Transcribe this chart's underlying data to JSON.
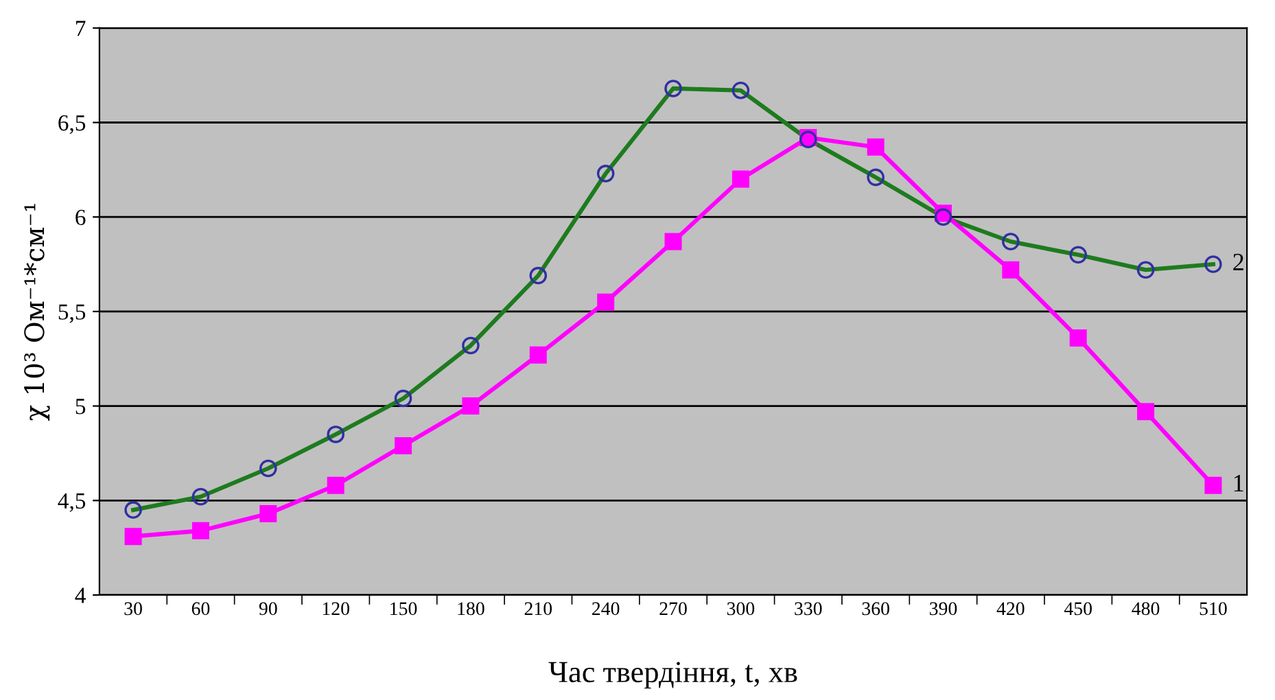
{
  "chart_data": {
    "type": "line",
    "xlabel": "Час твердіння, t, хв",
    "ylabel": "χ 10³ Ом⁻¹*см⁻¹",
    "categories": [
      "30",
      "60",
      "90",
      "120",
      "150",
      "180",
      "210",
      "240",
      "270",
      "300",
      "330",
      "360",
      "390",
      "420",
      "450",
      "480",
      "510"
    ],
    "series": [
      {
        "name": "2",
        "color": "#1e7b1e",
        "marker": "circle",
        "values": [
          4.45,
          4.52,
          4.67,
          4.85,
          5.04,
          5.32,
          5.69,
          6.23,
          6.68,
          6.67,
          6.41,
          6.21,
          6.0,
          5.87,
          5.8,
          5.72,
          5.75
        ]
      },
      {
        "name": "1",
        "color": "#ff00ff",
        "marker": "square",
        "values": [
          4.31,
          4.34,
          4.43,
          4.58,
          4.79,
          5.0,
          5.27,
          5.55,
          5.87,
          6.2,
          6.42,
          6.37,
          6.02,
          5.72,
          5.36,
          4.97,
          4.58
        ]
      }
    ],
    "ylim": [
      4,
      7
    ],
    "yticks": [
      4,
      {
        "value": 4.5,
        "label": "4,5"
      },
      5,
      {
        "value": 5.5,
        "label": "5,5"
      },
      6,
      {
        "value": 6.5,
        "label": "6,5"
      },
      7
    ],
    "grid": "y",
    "line_style": "solid",
    "legend": false
  }
}
